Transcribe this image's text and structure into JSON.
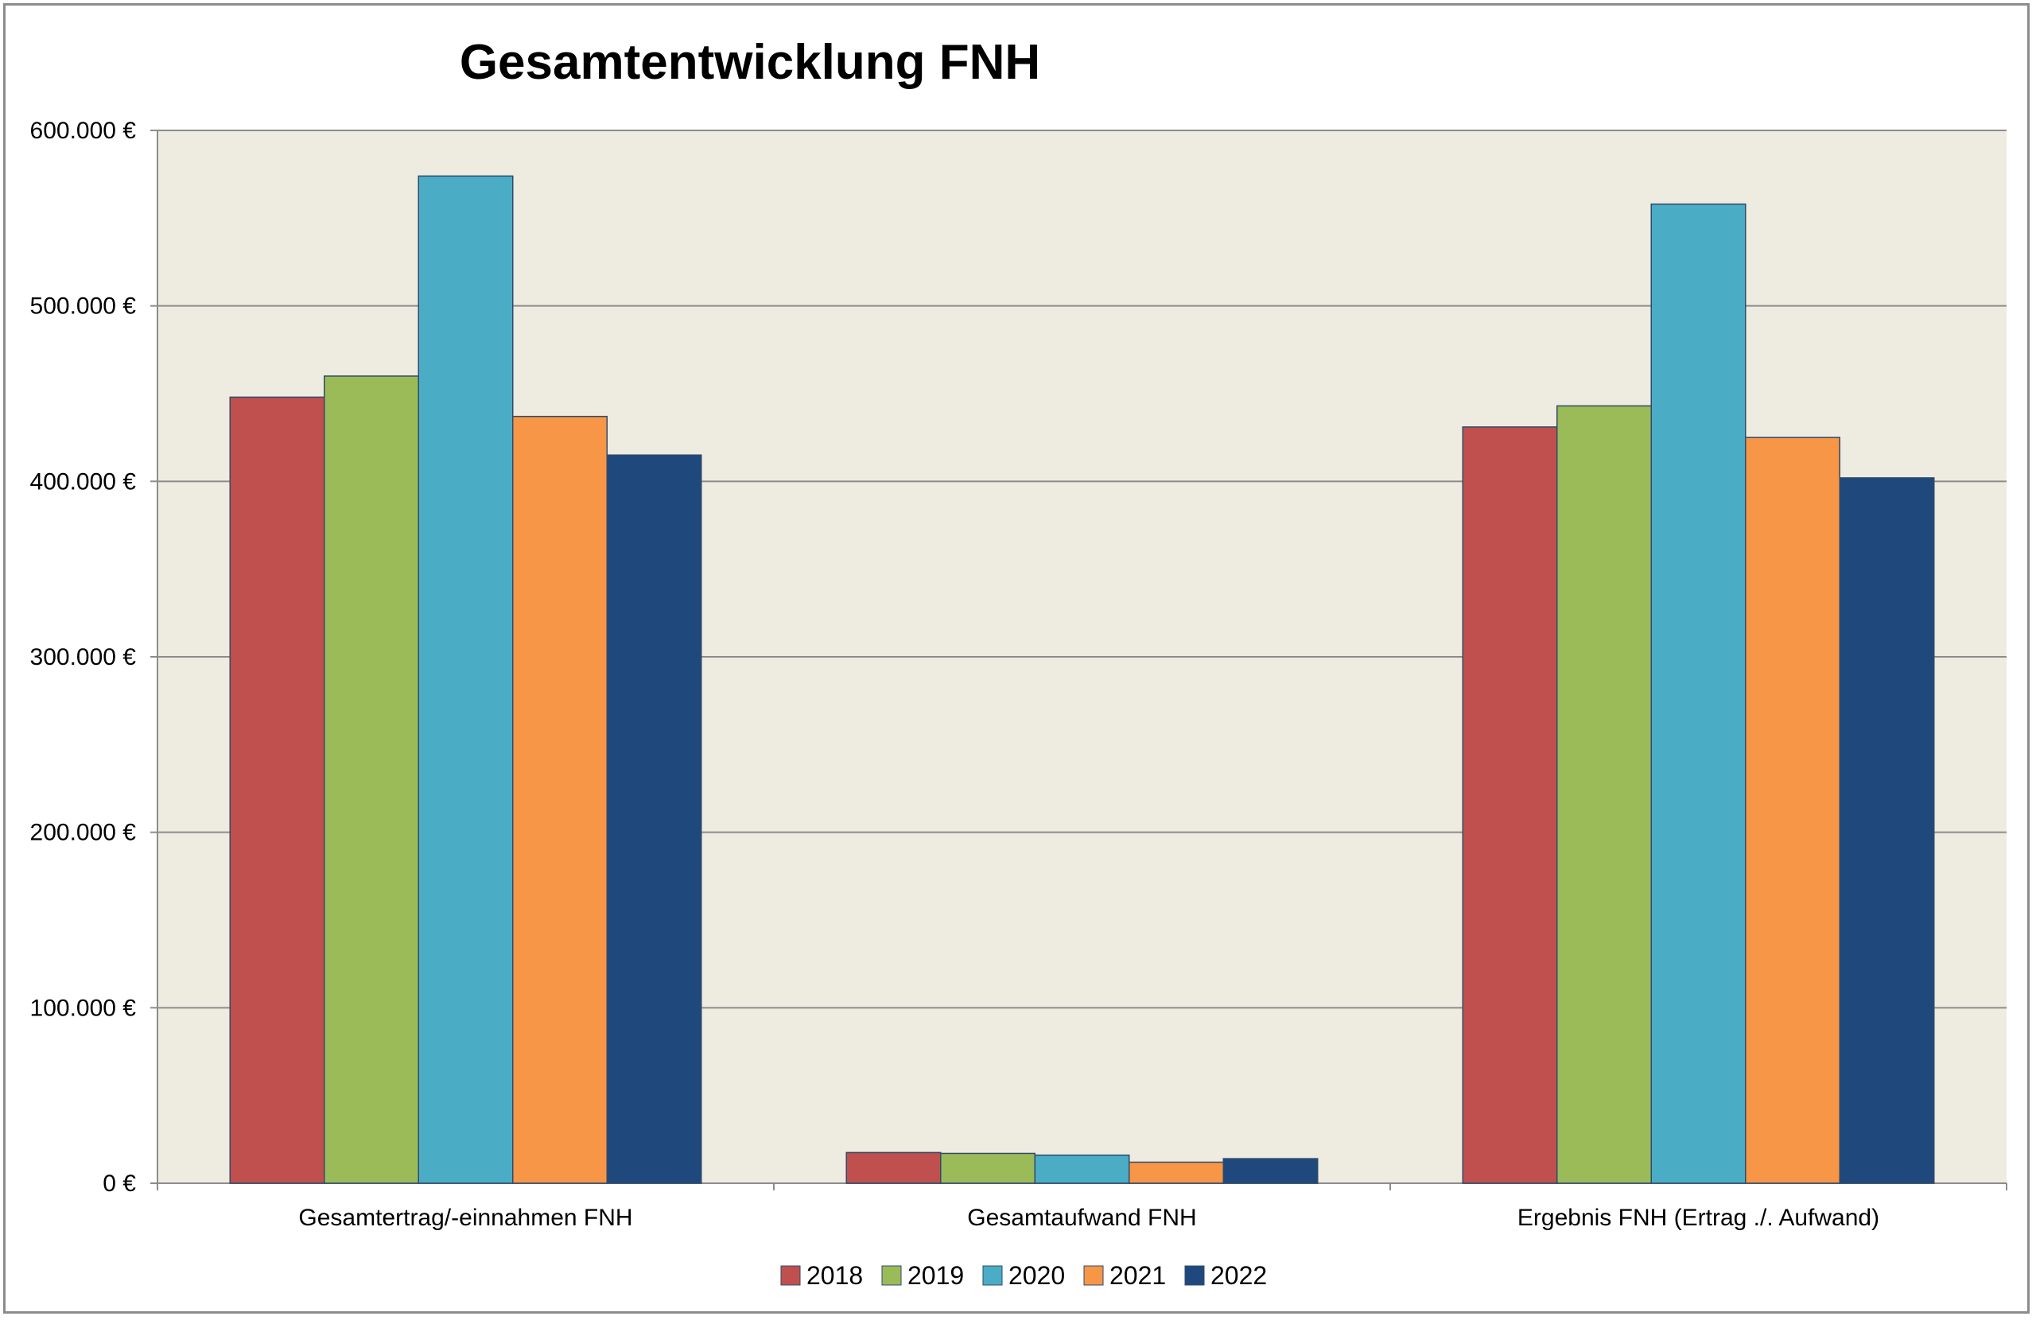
{
  "chart_data": {
    "type": "bar",
    "title": "Gesamtentwicklung FNH",
    "xlabel": "",
    "ylabel": "",
    "categories": [
      "Gesamtertrag/-einnahmen FNH",
      "Gesamtaufwand FNH",
      "Ergebnis FNH (Ertrag ./. Aufwand)"
    ],
    "series": [
      {
        "name": "2018",
        "color": "#C0504D",
        "values": [
          448000,
          17500,
          431000
        ]
      },
      {
        "name": "2019",
        "color": "#9BBB59",
        "values": [
          460000,
          17000,
          443000
        ]
      },
      {
        "name": "2020",
        "color": "#4BACC6",
        "values": [
          574000,
          16000,
          558000
        ]
      },
      {
        "name": "2021",
        "color": "#F79646",
        "values": [
          437000,
          12000,
          425000
        ]
      },
      {
        "name": "2022",
        "color": "#1F497D",
        "values": [
          415000,
          14000,
          402000
        ]
      }
    ],
    "ylim": [
      0,
      600000
    ],
    "yticks": [
      0,
      100000,
      200000,
      300000,
      400000,
      500000,
      600000
    ],
    "ytick_labels": [
      "0 €",
      "100.000 €",
      "200.000 €",
      "300.000 €",
      "400.000 €",
      "500.000 €",
      "600.000 €"
    ],
    "grid": true,
    "legend_position": "bottom",
    "plot_background": "#EEEBE0",
    "gridline_color": "#8C8C8C"
  }
}
